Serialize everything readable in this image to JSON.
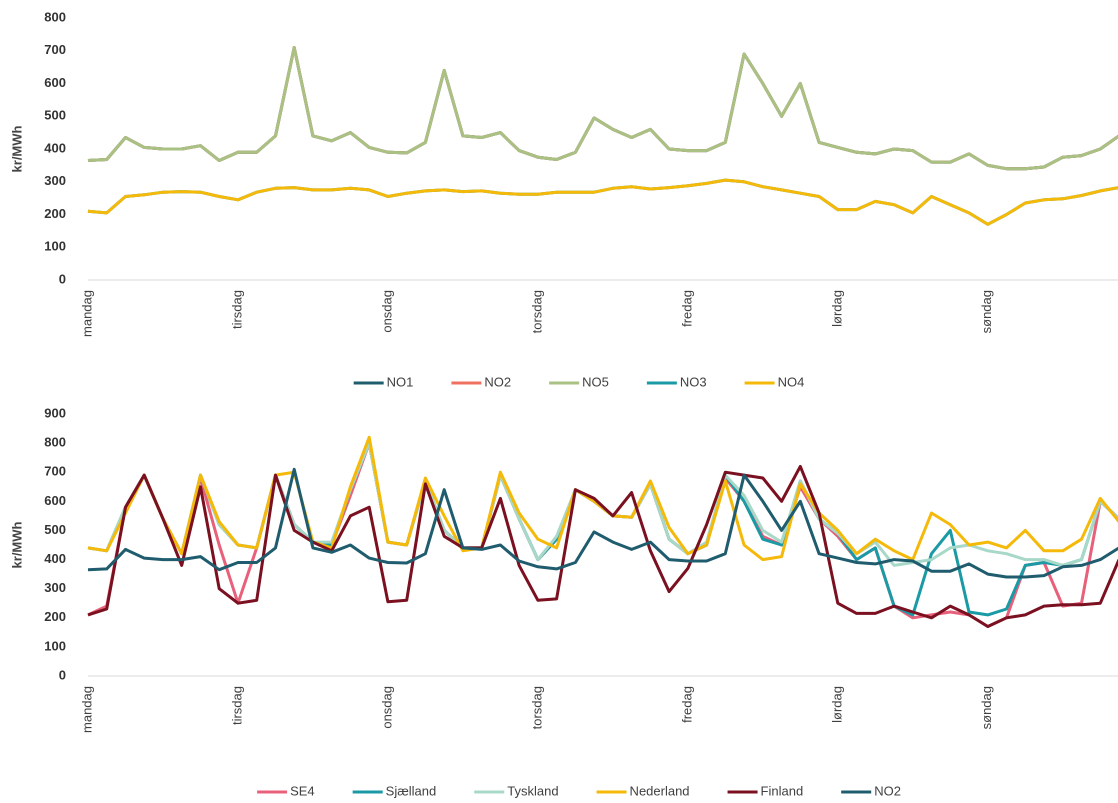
{
  "chart_data": [
    {
      "type": "line",
      "y_label": "kr/MWh",
      "categories": [
        "mandag",
        null,
        null,
        null,
        null,
        null,
        null,
        null,
        "tirsdag",
        null,
        null,
        null,
        null,
        null,
        null,
        null,
        "onsdag",
        null,
        null,
        null,
        null,
        null,
        null,
        null,
        "torsdag",
        null,
        null,
        null,
        null,
        null,
        null,
        null,
        "fredag",
        null,
        null,
        null,
        null,
        null,
        null,
        null,
        "lørdag",
        null,
        null,
        null,
        null,
        null,
        null,
        null,
        "søndag",
        null,
        null,
        null,
        null,
        null,
        null,
        null
      ],
      "ylim": [
        0,
        800
      ],
      "yticks": [
        0,
        100,
        200,
        300,
        400,
        500,
        600,
        700,
        800
      ],
      "series": [
        {
          "name": "NO1",
          "color": "#1f5c6e",
          "values": [
            365,
            368,
            435,
            405,
            400,
            400,
            410,
            365,
            390,
            390,
            440,
            710,
            440,
            425,
            450,
            405,
            390,
            388,
            420,
            640,
            440,
            435,
            450,
            395,
            375,
            368,
            390,
            495,
            460,
            435,
            460,
            400,
            395,
            395,
            420,
            690,
            600,
            500,
            600,
            420,
            405,
            390,
            385,
            400,
            395,
            360,
            360,
            385,
            350,
            340,
            340,
            345,
            375,
            380,
            400,
            440
          ]
        },
        {
          "name": "NO2",
          "color": "#f07060",
          "values": [
            365,
            368,
            435,
            405,
            400,
            400,
            410,
            365,
            390,
            390,
            440,
            710,
            440,
            425,
            450,
            405,
            390,
            388,
            420,
            640,
            440,
            435,
            450,
            395,
            375,
            368,
            390,
            495,
            460,
            435,
            460,
            400,
            395,
            395,
            420,
            690,
            600,
            500,
            600,
            420,
            405,
            390,
            385,
            400,
            395,
            360,
            360,
            385,
            350,
            340,
            340,
            345,
            375,
            380,
            400,
            440
          ]
        },
        {
          "name": "NO5",
          "color": "#a9c283",
          "values": [
            365,
            368,
            435,
            405,
            400,
            400,
            410,
            365,
            390,
            390,
            440,
            710,
            440,
            425,
            450,
            405,
            390,
            388,
            420,
            640,
            440,
            435,
            450,
            395,
            375,
            368,
            390,
            495,
            460,
            435,
            460,
            400,
            395,
            395,
            420,
            690,
            600,
            500,
            600,
            420,
            405,
            390,
            385,
            400,
            395,
            360,
            360,
            385,
            350,
            340,
            340,
            345,
            375,
            380,
            400,
            440
          ]
        },
        {
          "name": "NO3",
          "color": "#1a9aa5",
          "values": [
            210,
            205,
            255,
            260,
            268,
            270,
            268,
            255,
            245,
            268,
            280,
            282,
            275,
            275,
            280,
            275,
            255,
            265,
            272,
            275,
            270,
            272,
            265,
            262,
            262,
            268,
            268,
            268,
            280,
            285,
            278,
            282,
            288,
            295,
            305,
            300,
            285,
            275,
            265,
            255,
            215,
            215,
            240,
            230,
            205,
            255,
            230,
            205,
            170,
            200,
            235,
            245,
            248,
            258,
            272,
            282
          ]
        },
        {
          "name": "NO4",
          "color": "#f5b90a",
          "values": [
            210,
            205,
            255,
            260,
            268,
            270,
            268,
            255,
            245,
            268,
            280,
            282,
            275,
            275,
            280,
            275,
            255,
            265,
            272,
            275,
            270,
            272,
            265,
            262,
            262,
            268,
            268,
            268,
            280,
            285,
            278,
            282,
            288,
            295,
            305,
            300,
            285,
            275,
            265,
            255,
            215,
            215,
            240,
            230,
            205,
            255,
            230,
            205,
            170,
            200,
            235,
            245,
            248,
            258,
            272,
            282
          ]
        }
      ]
    },
    {
      "type": "line",
      "y_label": "kr/MWh",
      "categories": [
        "mandag",
        null,
        null,
        null,
        null,
        null,
        null,
        null,
        "tirsdag",
        null,
        null,
        null,
        null,
        null,
        null,
        null,
        "onsdag",
        null,
        null,
        null,
        null,
        null,
        null,
        null,
        "torsdag",
        null,
        null,
        null,
        null,
        null,
        null,
        null,
        "fredag",
        null,
        null,
        null,
        null,
        null,
        null,
        null,
        "lørdag",
        null,
        null,
        null,
        null,
        null,
        null,
        null,
        "søndag",
        null,
        null,
        null,
        null,
        null,
        null,
        null
      ],
      "ylim": [
        0,
        900
      ],
      "yticks": [
        0,
        100,
        200,
        300,
        400,
        500,
        600,
        700,
        800,
        900
      ],
      "series": [
        {
          "name": "SE4",
          "color": "#e8607a",
          "values": [
            210,
            240,
            580,
            690,
            540,
            420,
            680,
            450,
            250,
            440,
            690,
            520,
            460,
            450,
            620,
            800,
            460,
            450,
            670,
            500,
            440,
            440,
            690,
            540,
            400,
            470,
            640,
            600,
            550,
            545,
            660,
            470,
            420,
            450,
            680,
            600,
            480,
            450,
            650,
            540,
            480,
            400,
            440,
            240,
            200,
            210,
            220,
            210,
            170,
            200,
            380,
            390,
            240,
            250,
            600,
            540
          ]
        },
        {
          "name": "Sjælland",
          "color": "#1a9aa5",
          "values": [
            440,
            430,
            580,
            690,
            540,
            420,
            690,
            520,
            450,
            440,
            690,
            520,
            460,
            450,
            640,
            800,
            460,
            450,
            670,
            500,
            440,
            440,
            690,
            540,
            400,
            470,
            640,
            600,
            550,
            545,
            660,
            470,
            420,
            450,
            690,
            600,
            470,
            450,
            670,
            540,
            490,
            400,
            440,
            240,
            210,
            420,
            500,
            220,
            210,
            230,
            380,
            390,
            380,
            400,
            600,
            540
          ]
        },
        {
          "name": "Tyskland",
          "color": "#a8d8c8",
          "values": [
            440,
            430,
            580,
            690,
            540,
            420,
            690,
            520,
            450,
            440,
            690,
            520,
            460,
            460,
            640,
            800,
            460,
            450,
            670,
            500,
            440,
            440,
            690,
            540,
            400,
            480,
            640,
            600,
            550,
            545,
            660,
            470,
            420,
            460,
            690,
            620,
            500,
            460,
            670,
            540,
            490,
            420,
            460,
            380,
            390,
            400,
            440,
            450,
            430,
            420,
            400,
            400,
            380,
            400,
            600,
            540
          ]
        },
        {
          "name": "Nederland",
          "color": "#f5b90a",
          "values": [
            440,
            430,
            560,
            690,
            540,
            420,
            690,
            530,
            450,
            440,
            690,
            700,
            460,
            440,
            650,
            820,
            460,
            450,
            680,
            550,
            430,
            440,
            700,
            560,
            470,
            440,
            640,
            600,
            550,
            545,
            670,
            510,
            420,
            450,
            670,
            450,
            400,
            410,
            660,
            560,
            500,
            420,
            470,
            430,
            400,
            560,
            520,
            450,
            460,
            440,
            500,
            430,
            430,
            470,
            610,
            530
          ]
        },
        {
          "name": "Finland",
          "color": "#7a1020",
          "values": [
            210,
            230,
            580,
            690,
            540,
            380,
            650,
            300,
            250,
            260,
            690,
            500,
            460,
            430,
            550,
            580,
            255,
            260,
            660,
            480,
            440,
            440,
            610,
            380,
            260,
            265,
            640,
            610,
            550,
            630,
            430,
            290,
            370,
            520,
            700,
            690,
            680,
            600,
            720,
            560,
            250,
            215,
            215,
            240,
            220,
            200,
            240,
            210,
            170,
            200,
            210,
            240,
            245,
            245,
            250,
            400
          ]
        },
        {
          "name": "NO2",
          "color": "#1f5c6e",
          "values": [
            365,
            368,
            435,
            405,
            400,
            400,
            410,
            365,
            390,
            390,
            440,
            710,
            440,
            425,
            450,
            405,
            390,
            388,
            420,
            640,
            440,
            435,
            450,
            395,
            375,
            368,
            390,
            495,
            460,
            435,
            460,
            400,
            395,
            395,
            420,
            690,
            600,
            500,
            600,
            420,
            405,
            390,
            385,
            400,
            395,
            360,
            360,
            385,
            350,
            340,
            340,
            345,
            375,
            380,
            400,
            440
          ]
        }
      ]
    }
  ]
}
